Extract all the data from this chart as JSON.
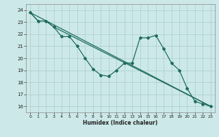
{
  "xlabel": "Humidex (Indice chaleur)",
  "bg_color": "#cce8e8",
  "line_color": "#1e6b5e",
  "grid_color": "#aacccc",
  "xlim": [
    -0.5,
    23.5
  ],
  "ylim": [
    15.5,
    24.5
  ],
  "yticks": [
    16,
    17,
    18,
    19,
    20,
    21,
    22,
    23,
    24
  ],
  "xticks": [
    0,
    1,
    2,
    3,
    4,
    5,
    6,
    7,
    8,
    9,
    10,
    11,
    12,
    13,
    14,
    15,
    16,
    17,
    18,
    19,
    20,
    21,
    22,
    23
  ],
  "series_main": {
    "x": [
      0,
      1,
      2,
      3,
      4,
      5,
      6,
      7,
      8,
      9,
      10,
      11,
      12,
      13,
      14,
      15,
      16,
      17,
      18,
      19,
      20,
      21,
      22,
      23
    ],
    "y": [
      23.8,
      23.1,
      23.1,
      22.6,
      21.8,
      21.8,
      21.0,
      20.0,
      19.1,
      18.6,
      18.5,
      19.0,
      19.6,
      19.6,
      21.7,
      21.7,
      21.9,
      20.8,
      19.6,
      19.0,
      17.5,
      16.4,
      16.2,
      16.0
    ]
  },
  "series_line1": {
    "x": [
      0,
      23
    ],
    "y": [
      23.8,
      16.0
    ]
  },
  "series_line2": {
    "x": [
      0,
      1,
      2,
      3,
      23
    ],
    "y": [
      23.8,
      23.1,
      23.1,
      22.6,
      16.0
    ]
  }
}
